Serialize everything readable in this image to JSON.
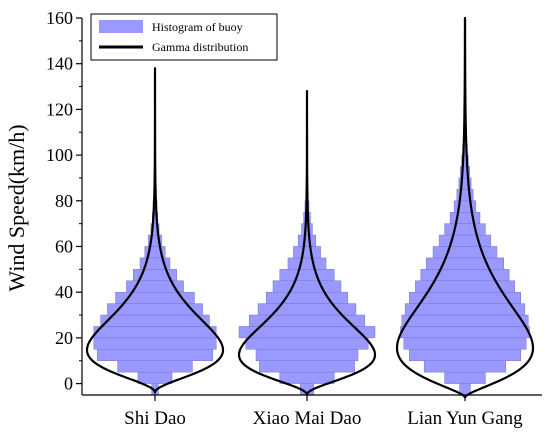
{
  "chart_data": {
    "type": "violin",
    "title": "",
    "xlabel": "",
    "ylabel": "Wind Speed(km/h)",
    "ylim": [
      -5,
      160
    ],
    "yticks": [
      0,
      20,
      40,
      60,
      80,
      100,
      120,
      140,
      160
    ],
    "ytick_labels": [
      "0",
      "20",
      "40",
      "60",
      "80",
      "100",
      "120",
      "140",
      "160"
    ],
    "categories": [
      "Shi Dao",
      "Xiao Mai Dao",
      "Lian Yun Gang"
    ],
    "legend": {
      "placement": "top-left",
      "entries": [
        "Histogram of buoy",
        "Gamma distribution"
      ]
    },
    "colors": {
      "histogram_fill": "#9999ff",
      "histogram_line": "#7777cc",
      "gamma_line": "#000000"
    },
    "bin_width": 5,
    "series": [
      {
        "name": "Histogram of buoy",
        "kind": "histogram",
        "bins_start": -5,
        "per_category": [
          [
            0.05,
            0.25,
            0.55,
            0.85,
            0.9,
            0.9,
            0.8,
            0.7,
            0.58,
            0.42,
            0.32,
            0.22,
            0.15,
            0.1,
            0.06,
            0.04,
            0.03,
            0.02,
            0.015,
            0.01,
            0.008,
            0.006,
            0.005,
            0.004,
            0.003,
            0.002,
            0.002,
            0.001
          ],
          [
            0.1,
            0.4,
            0.7,
            0.75,
            0.9,
            1.0,
            0.85,
            0.72,
            0.6,
            0.5,
            0.4,
            0.28,
            0.2,
            0.13,
            0.08,
            0.05,
            0.03,
            0.02,
            0.015,
            0.01,
            0.007,
            0.005,
            0.004,
            0.003,
            0.002
          ],
          [
            0.08,
            0.3,
            0.6,
            0.82,
            0.9,
            0.95,
            0.93,
            0.88,
            0.82,
            0.73,
            0.65,
            0.57,
            0.47,
            0.38,
            0.3,
            0.22,
            0.16,
            0.12,
            0.09,
            0.07,
            0.05,
            0.035,
            0.025,
            0.018,
            0.013,
            0.009,
            0.007,
            0.005,
            0.004,
            0.003,
            0.002,
            0.0015,
            0.001
          ]
        ]
      },
      {
        "name": "Gamma distribution",
        "kind": "density",
        "per_category": [
          {
            "shape": 3.2,
            "scale": 8.5,
            "shift": -4,
            "max_x": 138
          },
          {
            "shape": 3.2,
            "scale": 8.0,
            "shift": -5,
            "max_x": 128
          },
          {
            "shape": 2.6,
            "scale": 13.5,
            "shift": -6,
            "max_x": 160
          }
        ]
      }
    ]
  }
}
